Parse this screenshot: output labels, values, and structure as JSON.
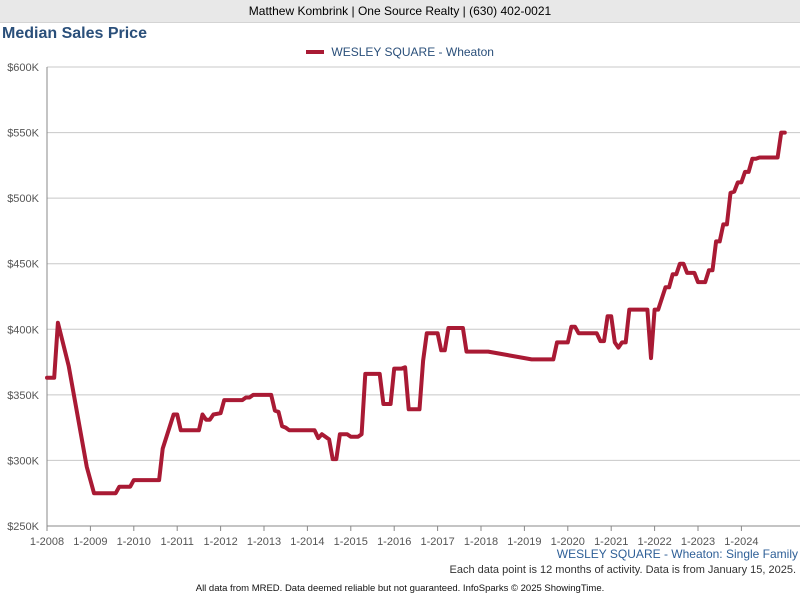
{
  "header": {
    "agent_line": "Matthew Kombrink | One Source Realty | (630) 402-0021"
  },
  "chart_data": {
    "type": "line",
    "title": "Median Sales Price",
    "xlabel": "",
    "ylabel": "",
    "ylim": [
      250000,
      600000
    ],
    "yticks": [
      250000,
      300000,
      350000,
      400000,
      450000,
      500000,
      550000,
      600000
    ],
    "ytick_labels": [
      "$250K",
      "$300K",
      "$350K",
      "$400K",
      "$450K",
      "$500K",
      "$550K",
      "$600K"
    ],
    "xlim": [
      "2008-01",
      "2024-12"
    ],
    "xtick_labels": [
      "1-2008",
      "1-2009",
      "1-2010",
      "1-2011",
      "1-2012",
      "1-2013",
      "1-2014",
      "1-2015",
      "1-2016",
      "1-2017",
      "1-2018",
      "1-2019",
      "1-2020",
      "1-2021",
      "1-2022",
      "1-2023",
      "1-2024"
    ],
    "grid": "horizontal",
    "legend_position": "top-center",
    "series": [
      {
        "name": "WESLEY SQUARE - Wheaton",
        "color": "#a91a34",
        "points": [
          [
            "2008-01",
            363000
          ],
          [
            "2008-03",
            363000
          ],
          [
            "2008-04",
            405000
          ],
          [
            "2008-07",
            372000
          ],
          [
            "2008-12",
            295000
          ],
          [
            "2009-02",
            275000
          ],
          [
            "2009-08",
            275000
          ],
          [
            "2009-09",
            280000
          ],
          [
            "2009-12",
            280000
          ],
          [
            "2010-01",
            285000
          ],
          [
            "2010-08",
            285000
          ],
          [
            "2010-09",
            309000
          ],
          [
            "2010-12",
            335000
          ],
          [
            "2011-01",
            335000
          ],
          [
            "2011-02",
            323000
          ],
          [
            "2011-07",
            323000
          ],
          [
            "2011-08",
            335000
          ],
          [
            "2011-09",
            331000
          ],
          [
            "2011-10",
            331000
          ],
          [
            "2011-11",
            335000
          ],
          [
            "2012-01",
            336000
          ],
          [
            "2012-02",
            346000
          ],
          [
            "2012-07",
            346000
          ],
          [
            "2012-08",
            348000
          ],
          [
            "2012-09",
            348000
          ],
          [
            "2012-10",
            350000
          ],
          [
            "2013-03",
            350000
          ],
          [
            "2013-04",
            338000
          ],
          [
            "2013-05",
            337000
          ],
          [
            "2013-06",
            326000
          ],
          [
            "2013-07",
            325000
          ],
          [
            "2013-08",
            323000
          ],
          [
            "2014-03",
            323000
          ],
          [
            "2014-04",
            317000
          ],
          [
            "2014-05",
            320000
          ],
          [
            "2014-07",
            316000
          ],
          [
            "2014-08",
            301000
          ],
          [
            "2014-09",
            301000
          ],
          [
            "2014-10",
            320000
          ],
          [
            "2014-12",
            320000
          ],
          [
            "2015-01",
            318000
          ],
          [
            "2015-03",
            318000
          ],
          [
            "2015-04",
            320000
          ],
          [
            "2015-05",
            366000
          ],
          [
            "2015-09",
            366000
          ],
          [
            "2015-10",
            343000
          ],
          [
            "2015-12",
            343000
          ],
          [
            "2016-01",
            370000
          ],
          [
            "2016-03",
            370000
          ],
          [
            "2016-04",
            371000
          ],
          [
            "2016-05",
            339000
          ],
          [
            "2016-08",
            339000
          ],
          [
            "2016-09",
            376000
          ],
          [
            "2016-10",
            397000
          ],
          [
            "2017-01",
            397000
          ],
          [
            "2017-02",
            384000
          ],
          [
            "2017-03",
            384000
          ],
          [
            "2017-04",
            401000
          ],
          [
            "2017-08",
            401000
          ],
          [
            "2017-09",
            383000
          ],
          [
            "2018-03",
            383000
          ],
          [
            "2019-03",
            377000
          ],
          [
            "2019-09",
            377000
          ],
          [
            "2019-10",
            390000
          ],
          [
            "2020-01",
            390000
          ],
          [
            "2020-02",
            402000
          ],
          [
            "2020-03",
            402000
          ],
          [
            "2020-04",
            397000
          ],
          [
            "2020-09",
            397000
          ],
          [
            "2020-10",
            391000
          ],
          [
            "2020-11",
            391000
          ],
          [
            "2020-12",
            410000
          ],
          [
            "2021-01",
            410000
          ],
          [
            "2021-02",
            390000
          ],
          [
            "2021-03",
            386000
          ],
          [
            "2021-04",
            390000
          ],
          [
            "2021-05",
            390000
          ],
          [
            "2021-06",
            415000
          ],
          [
            "2021-11",
            415000
          ],
          [
            "2021-12",
            378000
          ],
          [
            "2022-01",
            415000
          ],
          [
            "2022-02",
            415000
          ],
          [
            "2022-04",
            432000
          ],
          [
            "2022-05",
            432000
          ],
          [
            "2022-06",
            442000
          ],
          [
            "2022-07",
            442000
          ],
          [
            "2022-08",
            450000
          ],
          [
            "2022-09",
            450000
          ],
          [
            "2022-10",
            443000
          ],
          [
            "2022-12",
            443000
          ],
          [
            "2023-01",
            436000
          ],
          [
            "2023-03",
            436000
          ],
          [
            "2023-04",
            445000
          ],
          [
            "2023-05",
            445000
          ],
          [
            "2023-06",
            467000
          ],
          [
            "2023-07",
            467000
          ],
          [
            "2023-08",
            480000
          ],
          [
            "2023-09",
            480000
          ],
          [
            "2023-10",
            504000
          ],
          [
            "2023-11",
            505000
          ],
          [
            "2023-12",
            512000
          ],
          [
            "2024-01",
            512000
          ],
          [
            "2024-02",
            520000
          ],
          [
            "2024-03",
            520000
          ],
          [
            "2024-04",
            530000
          ],
          [
            "2024-05",
            530000
          ],
          [
            "2024-06",
            531000
          ],
          [
            "2024-11",
            531000
          ],
          [
            "2024-12",
            550000
          ],
          [
            "2025-01",
            550000
          ]
        ]
      }
    ]
  },
  "series_caption": "WESLEY SQUARE - Wheaton: Single Family",
  "note": "Each data point is 12 months of activity. Data is from January 15, 2025.",
  "footer": "All data from MRED. Data deemed reliable but not guaranteed. InfoSparks © 2025 ShowingTime."
}
